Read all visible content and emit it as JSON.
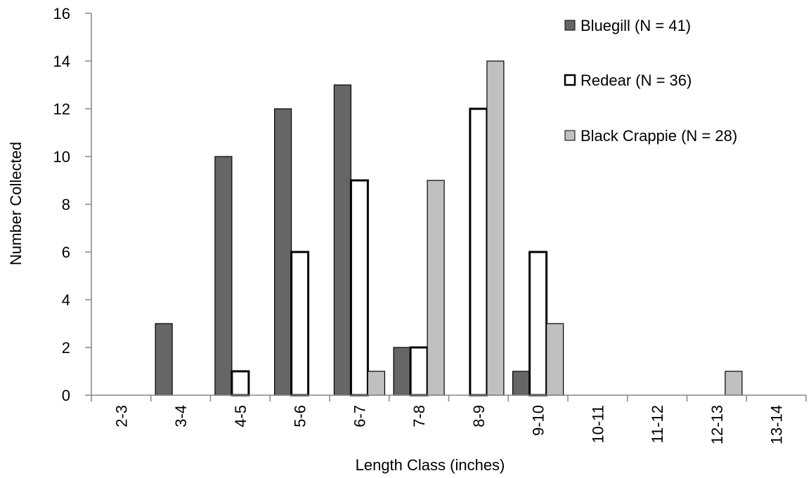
{
  "chart_data": {
    "type": "bar",
    "title": "",
    "xlabel": "Length Class (inches)",
    "ylabel": "Number Collected",
    "ylim": [
      0,
      16
    ],
    "yticks": [
      0,
      2,
      4,
      6,
      8,
      10,
      12,
      14,
      16
    ],
    "categories": [
      "2-3",
      "3-4",
      "4-5",
      "5-6",
      "6-7",
      "7-8",
      "8-9",
      "9-10",
      "10-11",
      "11-12",
      "12-13",
      "13-14"
    ],
    "series": [
      {
        "name": "Bluegill (N = 41)",
        "color": "#666666",
        "values": [
          0,
          3,
          10,
          12,
          13,
          2,
          0,
          1,
          0,
          0,
          0,
          0
        ]
      },
      {
        "name": "Redear (N = 36)",
        "color": "#ffffff",
        "values": [
          0,
          0,
          1,
          6,
          9,
          2,
          12,
          6,
          0,
          0,
          0,
          0
        ]
      },
      {
        "name": "Black Crappie (N = 28)",
        "color": "#c0c0c0",
        "values": [
          0,
          0,
          0,
          0,
          1,
          9,
          14,
          3,
          0,
          0,
          1,
          0
        ]
      }
    ],
    "grid": false,
    "legend_position": "top-right"
  }
}
